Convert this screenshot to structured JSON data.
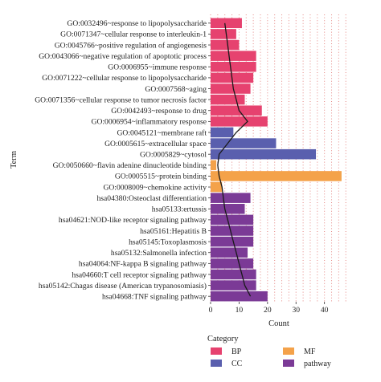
{
  "chart_data": {
    "type": "bar",
    "orientation": "horizontal",
    "xlabel": "Count",
    "ylabel": "Term",
    "xlim": [
      0,
      48
    ],
    "x_ticks": [
      0,
      10,
      20,
      30,
      40
    ],
    "grid": "dotted vertical gridlines",
    "overlay_line": "count profile across terms, drawn as a black line",
    "categories": [
      "GO:0032496~response to lipopolysaccharide",
      "GO:0071347~cellular response to interleukin-1",
      "GO:0045766~positive regulation of angiogenesis",
      "GO:0043066~negative regulation of apoptotic process",
      "GO:0006955~immune response",
      "GO:0071222~cellular response to lipopolysaccharide",
      "GO:0007568~aging",
      "GO:0071356~cellular response to tumor necrosis factor",
      "GO:0042493~response to drug",
      "GO:0006954~inflammatory response",
      "GO:0045121~membrane raft",
      "GO:0005615~extracellular space",
      "GO:0005829~cytosol",
      "GO:0050660~flavin adenine dinucleotide binding",
      "GO:0005515~protein binding",
      "GO:0008009~chemokine activity",
      "hsa04380:Osteoclast differentiation",
      "hsa05133:ertussis",
      "hsa04621:NOD-like receptor signaling pathway",
      "hsa05161:Hepatitis B",
      "hsa05145:Toxoplasmosis",
      "hsa05132:Salmonella infection",
      "hsa04064:NF-kappa B signaling pathway",
      "hsa04660:T cell receptor signaling pathway",
      "hsa05142:Chagas disease (American trypanosomiasis)",
      "hsa04668:TNF signaling pathway"
    ],
    "values": [
      11,
      9,
      10,
      16,
      16,
      15,
      14,
      12,
      18,
      20,
      8,
      23,
      37,
      2,
      46,
      4,
      14,
      12,
      15,
      15,
      15,
      13,
      15,
      16,
      16,
      20
    ],
    "category_group": [
      "BP",
      "BP",
      "BP",
      "BP",
      "BP",
      "BP",
      "BP",
      "BP",
      "BP",
      "BP",
      "CC",
      "CC",
      "CC",
      "MF",
      "MF",
      "MF",
      "pathway",
      "pathway",
      "pathway",
      "pathway",
      "pathway",
      "pathway",
      "pathway",
      "pathway",
      "pathway",
      "pathway"
    ],
    "line_values": [
      5,
      5.5,
      6,
      6.5,
      7,
      7.5,
      8,
      9,
      10,
      13,
      9,
      6,
      3,
      2.5,
      3,
      4,
      4.5,
      5,
      6,
      7,
      8,
      9,
      10,
      11,
      12,
      14
    ],
    "legend": {
      "title": "Category",
      "position": "bottom-left",
      "items": [
        {
          "label": "BP",
          "color": "#e6426f"
        },
        {
          "label": "CC",
          "color": "#5a5fae"
        },
        {
          "label": "MF",
          "color": "#f4a24a"
        },
        {
          "label": "pathway",
          "color": "#7b3a96"
        }
      ]
    },
    "colors": {
      "grid": "#e1736f",
      "line": "#1a1a1a",
      "axis": "#333333"
    }
  }
}
